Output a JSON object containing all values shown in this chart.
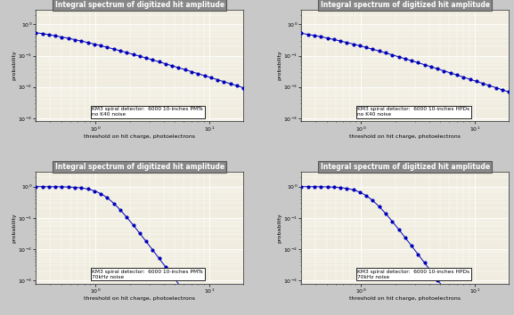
{
  "title": "Integral spectrum of digitized hit amplitude",
  "xlabel": "threshold on hit charge, photoelectrons",
  "ylabel": "probability",
  "plots": [
    {
      "label1": "KM3 spiral detector:  6000 10-inches PMTs",
      "label2": "no K40 noise",
      "noise": false,
      "detector": "PMT"
    },
    {
      "label1": "KM3 spiral detector:  6000 10-inches HPDs",
      "label2": "no K40 noise",
      "noise": false,
      "detector": "HPD"
    },
    {
      "label1": "KM3 spiral detector:  6000 10-inches PMTs",
      "label2": "70kHz noise",
      "noise": true,
      "detector": "PMT"
    },
    {
      "label1": "KM3 spiral detector:  6000 10-inches HPDs",
      "label2": "70kHz noise",
      "noise": true,
      "detector": "HPD"
    }
  ],
  "dot_color": "#0000bb",
  "line_color": "#0000bb",
  "bg_color": "#c8c8c8",
  "plot_bg": "#f0ede0",
  "title_bg": "#888888",
  "title_fg": "#ffffff",
  "grid_major_color": "#ffffff",
  "grid_minor_color": "#dcdcdc",
  "box_color": "#ffffff",
  "xlim": [
    0.3,
    20
  ],
  "ylim": [
    0.001,
    2.0
  ],
  "xmin": 0.28,
  "xmax": 22,
  "ymin": 0.0008,
  "ymax": 3.0
}
